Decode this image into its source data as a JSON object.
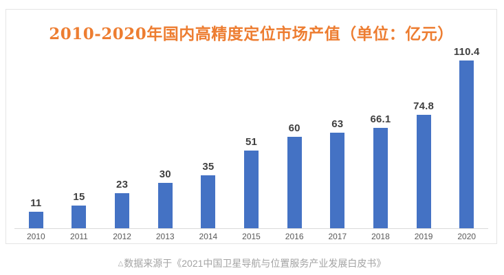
{
  "chart": {
    "title": "2010-2020年国内高精度定位市场产值（单位：亿元）",
    "caption_marker": "△",
    "caption": "数据来源于《2021中国卫星导航与位置服务产业发展白皮书》"
  },
  "chart_data": {
    "type": "bar",
    "title": "2010-2020年国内高精度定位市场产值（单位：亿元）",
    "categories": [
      "2010",
      "2011",
      "2012",
      "2013",
      "2014",
      "2015",
      "2016",
      "2017",
      "2018",
      "2019",
      "2020"
    ],
    "values": [
      11,
      15,
      23,
      30,
      35,
      51,
      60,
      63,
      66.1,
      74.8,
      110.4
    ],
    "xlabel": "",
    "ylabel": "",
    "ylim": [
      0,
      120
    ],
    "grid": false,
    "legend": false,
    "data_labels": true,
    "colors": {
      "bar": "#4472C4",
      "title": "#ED7D31",
      "value_label": "#3f3f3f",
      "tick_label": "#595959",
      "axis_line": "#d9d9d9",
      "frame_border": "#e4e4e4",
      "caption": "#a3a3a3"
    }
  }
}
